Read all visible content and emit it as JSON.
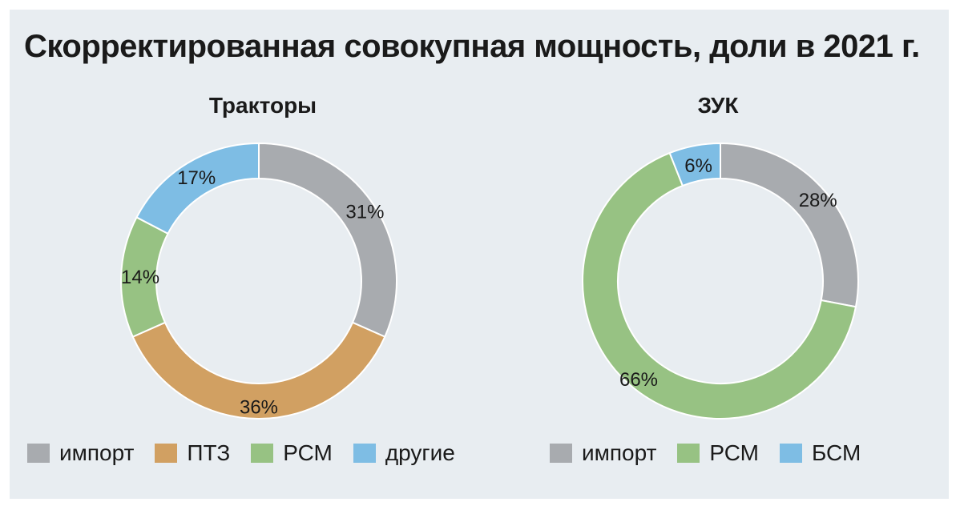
{
  "title": "Скорректированная совокупная мощность, доли в 2021 г.",
  "chart_data": [
    {
      "type": "pie",
      "title": "Тракторы",
      "categories": [
        "импорт",
        "ПТЗ",
        "РСМ",
        "другие"
      ],
      "values": [
        31,
        36,
        14,
        17
      ],
      "labels": [
        "31%",
        "36%",
        "14%",
        "17%"
      ],
      "colors": [
        "#a8abaf",
        "#d1a062",
        "#97c283",
        "#7ebde4"
      ]
    },
    {
      "type": "pie",
      "title": "ЗУК",
      "categories": [
        "импорт",
        "РСМ",
        "БСМ"
      ],
      "values": [
        28,
        66,
        6
      ],
      "labels": [
        "28%",
        "66%",
        "6%"
      ],
      "colors": [
        "#a8abaf",
        "#97c283",
        "#7ebde4"
      ]
    }
  ]
}
